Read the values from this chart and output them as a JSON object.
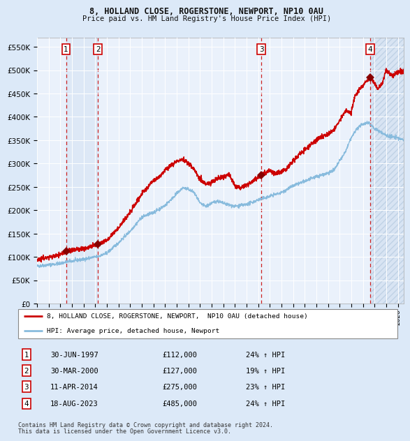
{
  "title1": "8, HOLLAND CLOSE, ROGERSTONE, NEWPORT, NP10 0AU",
  "title2": "Price paid vs. HM Land Registry's House Price Index (HPI)",
  "ylabel_ticks": [
    "£0",
    "£50K",
    "£100K",
    "£150K",
    "£200K",
    "£250K",
    "£300K",
    "£350K",
    "£400K",
    "£450K",
    "£500K",
    "£550K"
  ],
  "ytick_values": [
    0,
    50000,
    100000,
    150000,
    200000,
    250000,
    300000,
    350000,
    400000,
    450000,
    500000,
    550000
  ],
  "ylim": [
    0,
    570000
  ],
  "xlim_start": 1995.0,
  "xlim_end": 2026.5,
  "legend_line1": "8, HOLLAND CLOSE, ROGERSTONE, NEWPORT,  NP10 0AU (detached house)",
  "legend_line2": "HPI: Average price, detached house, Newport",
  "transactions": [
    {
      "num": 1,
      "date": "30-JUN-1997",
      "price": 112000,
      "pct": "24%",
      "year": 1997.5
    },
    {
      "num": 2,
      "date": "30-MAR-2000",
      "price": 127000,
      "pct": "19%",
      "year": 2000.25
    },
    {
      "num": 3,
      "date": "11-APR-2014",
      "price": 275000,
      "pct": "23%",
      "year": 2014.28
    },
    {
      "num": 4,
      "date": "18-AUG-2023",
      "price": 485000,
      "pct": "24%",
      "year": 2023.63
    }
  ],
  "footnote1": "Contains HM Land Registry data © Crown copyright and database right 2024.",
  "footnote2": "This data is licensed under the Open Government Licence v3.0.",
  "bg_color": "#dce9f8",
  "plot_bg": "#eaf1fb",
  "red_line_color": "#cc0000",
  "blue_line_color": "#88bbdd",
  "marker_color": "#880000",
  "dashed_color": "#cc2222",
  "xtick_years": [
    1995,
    1996,
    1997,
    1998,
    1999,
    2000,
    2001,
    2002,
    2003,
    2004,
    2005,
    2006,
    2007,
    2008,
    2009,
    2010,
    2011,
    2012,
    2013,
    2014,
    2015,
    2016,
    2017,
    2018,
    2019,
    2020,
    2021,
    2022,
    2023,
    2024,
    2025,
    2026
  ]
}
